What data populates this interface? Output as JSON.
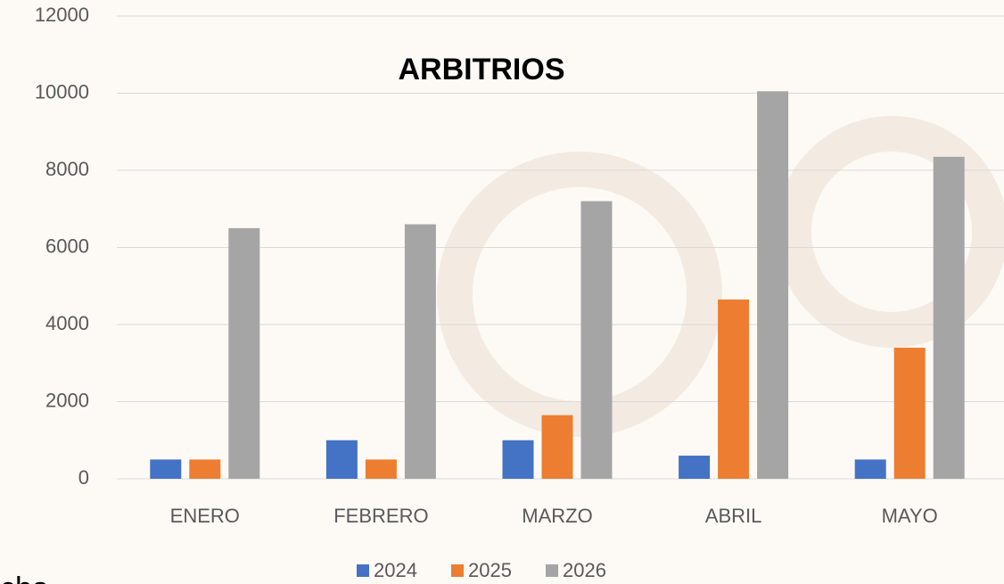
{
  "chart_data": {
    "type": "bar",
    "title": "ARBITRIOS",
    "categories": [
      "ENERO",
      "FEBRERO",
      "MARZO",
      "ABRIL",
      "MAYO"
    ],
    "series": [
      {
        "name": "2024",
        "color": "#4472c4",
        "values": [
          500,
          1000,
          1000,
          600,
          500
        ]
      },
      {
        "name": "2025",
        "color": "#ed7d31",
        "values": [
          500,
          500,
          1650,
          4650,
          3400
        ]
      },
      {
        "name": "2026",
        "color": "#a5a5a5",
        "values": [
          6500,
          6600,
          7200,
          10050,
          8350
        ]
      }
    ],
    "ylim": [
      0,
      12000
    ],
    "yticks": [
      0,
      2000,
      4000,
      6000,
      8000,
      10000,
      12000
    ],
    "grid": true,
    "legend": "bottom"
  },
  "fragment": "cha"
}
